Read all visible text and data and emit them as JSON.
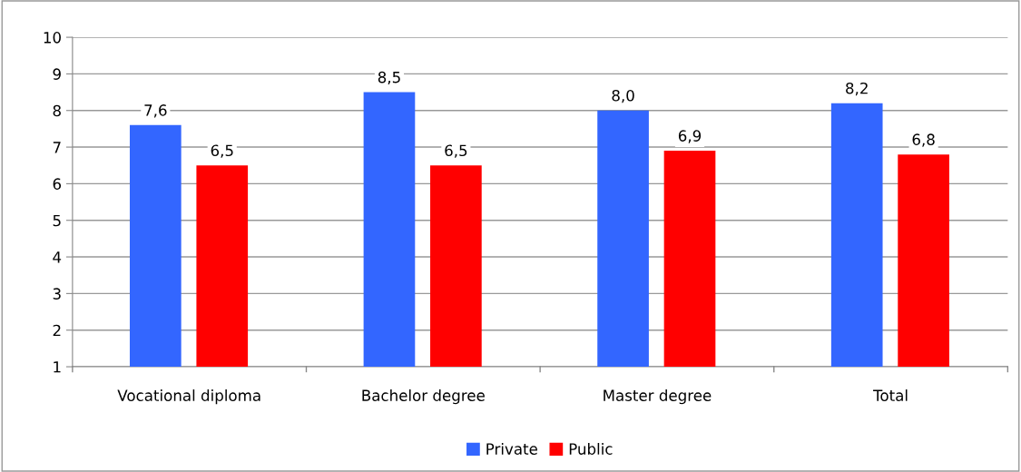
{
  "chart_data": {
    "type": "bar",
    "categories": [
      "Vocational diploma",
      "Bachelor degree",
      "Master degree",
      "Total"
    ],
    "series": [
      {
        "name": "Private",
        "color": "#3366ff",
        "values": [
          7.6,
          8.5,
          8.0,
          8.2
        ],
        "value_labels": [
          "7,6",
          "8,5",
          "8,0",
          "8,2"
        ]
      },
      {
        "name": "Public",
        "color": "#ff0000",
        "values": [
          6.5,
          6.5,
          6.9,
          6.8
        ],
        "value_labels": [
          "6,5",
          "6,5",
          "6,9",
          "6,8"
        ]
      }
    ],
    "ylim": [
      1,
      10
    ],
    "yticks": [
      1,
      2,
      3,
      4,
      5,
      6,
      7,
      8,
      9,
      10
    ],
    "grid": "y",
    "legend": "bottom"
  }
}
